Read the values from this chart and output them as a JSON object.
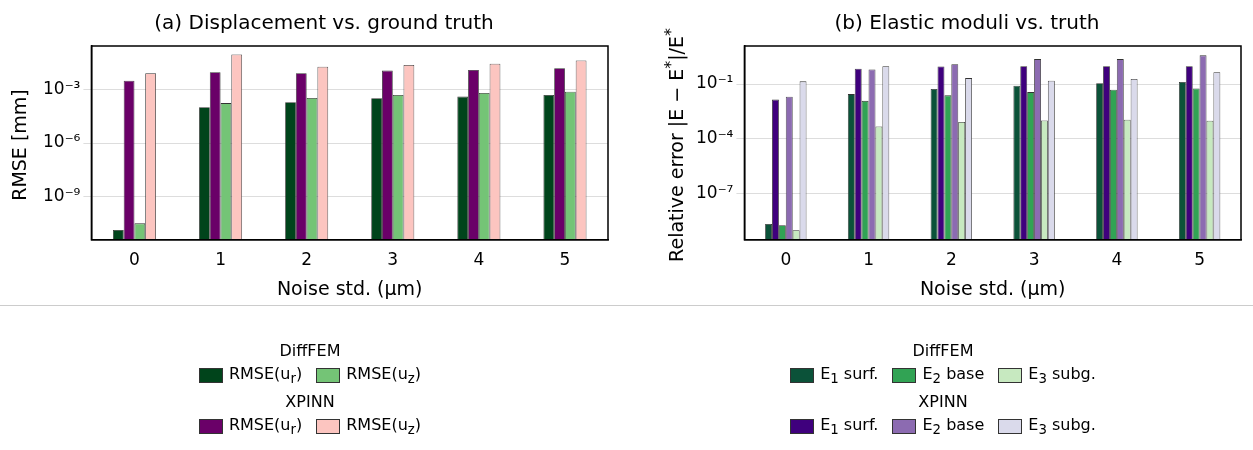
{
  "chart_data": [
    {
      "type": "bar",
      "title": "(a) Displacement vs. ground truth",
      "xlabel": "Noise std. (μm)",
      "ylabel": "RMSE [mm]",
      "categories": [
        "0",
        "1",
        "2",
        "3",
        "4",
        "5"
      ],
      "series": [
        {
          "name": "RMSE(u$_{r}$)",
          "color": "#00441b",
          "values": [
            1.4e-11,
            0.0001,
            0.00019,
            0.00032,
            0.00039,
            0.00048
          ]
        },
        {
          "name": "RMSE(u$_{r}$)",
          "color": "#6a0068",
          "values": [
            0.003,
            0.009,
            0.0078,
            0.011,
            0.012,
            0.015
          ]
        },
        {
          "name": "RMSE(u$_{z}$)",
          "color": "#74c476",
          "values": [
            3.3e-11,
            0.00017,
            0.00033,
            0.00048,
            0.00062,
            0.00073
          ]
        },
        {
          "name": "RMSE(u$_{z}$)",
          "color": "#fcc5c0",
          "values": [
            0.0078,
            0.087,
            0.018,
            0.023,
            0.027,
            0.04
          ]
        }
      ],
      "log": "y",
      "ylim": [
        4e-12,
        0.26
      ],
      "yticks": [
        {
          "value": 1e-09,
          "label": "10⁻⁹"
        },
        {
          "value": 1e-06,
          "label": "10⁻⁶"
        },
        {
          "value": 0.001,
          "label": "10⁻³"
        }
      ],
      "grid": "y",
      "legend": "bottom",
      "annotations": [
        "DiffFEM",
        "XPINN"
      ]
    },
    {
      "type": "bar",
      "title": "(b) Elastic moduli vs. truth",
      "xlabel": "Noise std. (μm)",
      "ylabel": "Relative error |E − E$^{*}$|/E$^{*}$",
      "categories": [
        "0",
        "1",
        "2",
        "3",
        "4",
        "5"
      ],
      "series": [
        {
          "name": "E$_{1}$ surf.",
          "color": "#0b5239",
          "values": [
            2.2e-09,
            0.028,
            0.054,
            0.081,
            0.11,
            0.13
          ]
        },
        {
          "name": "E$_{1}$ surf.",
          "color": "#3f007d",
          "values": [
            0.014,
            0.69,
            0.9,
            0.93,
            0.93,
            0.93
          ]
        },
        {
          "name": "E$_{2}$ base",
          "color": "#31a354",
          "values": [
            1.9e-09,
            0.012,
            0.024,
            0.036,
            0.049,
            0.057
          ]
        },
        {
          "name": "E$_{2}$ base",
          "color": "#8c6bb1",
          "values": [
            0.02,
            0.63,
            1.2,
            2.3,
            2.3,
            3.7
          ]
        },
        {
          "name": "E$_{3}$ subg.",
          "color": "#c7e9c0",
          "values": [
            1e-09,
            0.00048,
            0.00083,
            0.001,
            0.0011,
            0.00098
          ]
        },
        {
          "name": "E$_{3}$ subg.",
          "color": "#dadaeb",
          "values": [
            0.14,
            0.93,
            0.21,
            0.15,
            0.19,
            0.44
          ]
        }
      ],
      "log": "y",
      "ylim": [
        3e-10,
        12
      ],
      "yticks": [
        {
          "value": 1e-07,
          "label": "10⁻⁷"
        },
        {
          "value": 0.0001,
          "label": "10⁻⁴"
        },
        {
          "value": 0.1,
          "label": "10⁻¹"
        }
      ],
      "grid": "y",
      "legend": "bottom",
      "annotations": [
        "DiffFEM",
        "XPINN"
      ]
    }
  ]
}
